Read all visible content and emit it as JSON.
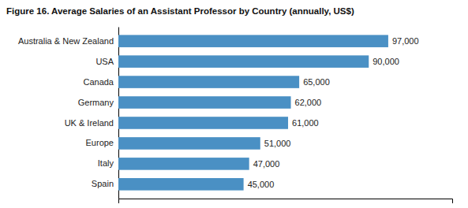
{
  "chart_data": {
    "type": "bar",
    "orientation": "horizontal",
    "title": "Figure 16. Average Salaries of an Assistant Professor by Country (annually, US$)",
    "categories": [
      "Australia & New Zealand",
      "USA",
      "Canada",
      "Germany",
      "UK & Ireland",
      "Europe",
      "Italy",
      "Spain"
    ],
    "values": [
      97000,
      90000,
      65000,
      62000,
      61000,
      51000,
      47000,
      45000
    ],
    "value_labels": [
      "97,000",
      "90,000",
      "65,000",
      "62,000",
      "61,000",
      "51,000",
      "47,000",
      "45,000"
    ],
    "data_labels": true,
    "color": "#4a90c4",
    "xlim": [
      0,
      120000
    ],
    "tick_labels": "y"
  }
}
